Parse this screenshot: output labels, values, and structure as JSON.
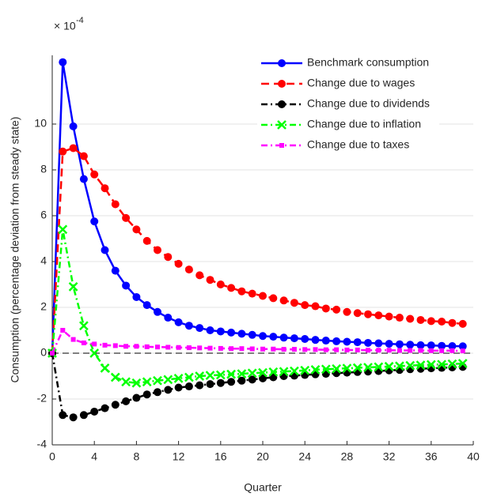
{
  "chart_data": {
    "type": "line",
    "x_label": "Quarter",
    "y_label": "Consumption (percentage deviation from steady state)",
    "y_multiplier": {
      "base": "× 10",
      "exponent": "-4"
    },
    "x": [
      0,
      1,
      2,
      3,
      4,
      5,
      6,
      7,
      8,
      9,
      10,
      11,
      12,
      13,
      14,
      15,
      16,
      17,
      18,
      19,
      20,
      21,
      22,
      23,
      24,
      25,
      26,
      27,
      28,
      29,
      30,
      31,
      32,
      33,
      34,
      35,
      36,
      37,
      38,
      39
    ],
    "xlim": [
      0,
      40
    ],
    "xticks": [
      0,
      4,
      8,
      12,
      16,
      20,
      24,
      28,
      32,
      36,
      40
    ],
    "ylim": [
      -4,
      13
    ],
    "yticks": [
      -4,
      -2,
      0,
      2,
      4,
      6,
      8,
      10
    ],
    "grid": true,
    "reference_line": 0,
    "legend": "top-right",
    "series": [
      {
        "name": "Benchmark consumption",
        "color": "#0000ff",
        "marker": "circle",
        "dash": "solid",
        "values": [
          0,
          12.7,
          9.9,
          7.6,
          5.75,
          4.5,
          3.6,
          2.95,
          2.45,
          2.1,
          1.8,
          1.55,
          1.35,
          1.2,
          1.1,
          1.0,
          0.95,
          0.9,
          0.85,
          0.8,
          0.75,
          0.72,
          0.68,
          0.65,
          0.62,
          0.58,
          0.55,
          0.52,
          0.5,
          0.48,
          0.45,
          0.43,
          0.41,
          0.39,
          0.37,
          0.35,
          0.34,
          0.32,
          0.31,
          0.3
        ]
      },
      {
        "name": "Change due to wages",
        "color": "#ff0000",
        "marker": "circle",
        "dash": "dashed",
        "values": [
          0,
          8.8,
          8.95,
          8.6,
          7.8,
          7.2,
          6.5,
          5.9,
          5.4,
          4.9,
          4.5,
          4.2,
          3.9,
          3.65,
          3.4,
          3.2,
          3.0,
          2.85,
          2.7,
          2.6,
          2.5,
          2.4,
          2.3,
          2.2,
          2.1,
          2.05,
          1.95,
          1.9,
          1.8,
          1.75,
          1.7,
          1.65,
          1.6,
          1.55,
          1.5,
          1.45,
          1.4,
          1.38,
          1.32,
          1.28
        ]
      },
      {
        "name": "Change due to dividends",
        "color": "#000000",
        "marker": "circle",
        "dash": "dashdot",
        "values": [
          0,
          -2.7,
          -2.8,
          -2.7,
          -2.55,
          -2.4,
          -2.25,
          -2.1,
          -1.95,
          -1.8,
          -1.7,
          -1.6,
          -1.5,
          -1.45,
          -1.4,
          -1.35,
          -1.3,
          -1.25,
          -1.2,
          -1.15,
          -1.1,
          -1.05,
          -1.0,
          -0.98,
          -0.95,
          -0.92,
          -0.9,
          -0.87,
          -0.85,
          -0.82,
          -0.8,
          -0.78,
          -0.75,
          -0.73,
          -0.7,
          -0.68,
          -0.66,
          -0.64,
          -0.62,
          -0.6
        ]
      },
      {
        "name": "Change due to inflation",
        "color": "#00ff00",
        "marker": "x",
        "dash": "dashdot",
        "values": [
          0,
          5.4,
          2.9,
          1.2,
          0.0,
          -0.65,
          -1.05,
          -1.25,
          -1.3,
          -1.25,
          -1.2,
          -1.15,
          -1.1,
          -1.05,
          -1.0,
          -0.97,
          -0.95,
          -0.92,
          -0.9,
          -0.87,
          -0.85,
          -0.82,
          -0.8,
          -0.78,
          -0.75,
          -0.72,
          -0.7,
          -0.68,
          -0.66,
          -0.64,
          -0.62,
          -0.6,
          -0.58,
          -0.56,
          -0.54,
          -0.52,
          -0.5,
          -0.49,
          -0.47,
          -0.45
        ]
      },
      {
        "name": "Change due to taxes",
        "color": "#ff00ff",
        "marker": "square",
        "dash": "dashdot",
        "values": [
          0,
          1.0,
          0.6,
          0.45,
          0.4,
          0.35,
          0.33,
          0.3,
          0.3,
          0.28,
          0.27,
          0.26,
          0.25,
          0.24,
          0.23,
          0.22,
          0.21,
          0.2,
          0.2,
          0.19,
          0.18,
          0.18,
          0.17,
          0.17,
          0.16,
          0.16,
          0.15,
          0.15,
          0.14,
          0.14,
          0.13,
          0.13,
          0.13,
          0.12,
          0.12,
          0.12,
          0.11,
          0.11,
          0.11,
          0.1
        ]
      }
    ]
  }
}
